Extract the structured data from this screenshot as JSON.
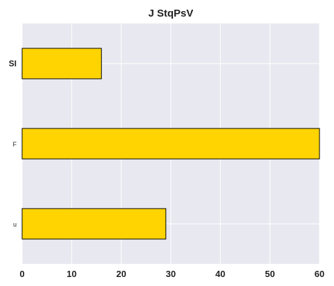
{
  "chart_data": {
    "type": "bar",
    "orientation": "horizontal",
    "title": "J StqPsV",
    "xlabel": "",
    "ylabel": "",
    "categories": [
      "SI",
      "F",
      "u"
    ],
    "values": [
      16,
      60,
      29
    ],
    "xlim": [
      0,
      60
    ],
    "xticks": [
      "0",
      "10",
      "20",
      "30",
      "40",
      "50",
      "60"
    ],
    "grid": true,
    "legend": "none",
    "colors": {
      "bar": "#FFD400",
      "bar_edge": "#000000",
      "plot_bg": "#E8E8F0",
      "grid": "#FFFFFF"
    }
  }
}
